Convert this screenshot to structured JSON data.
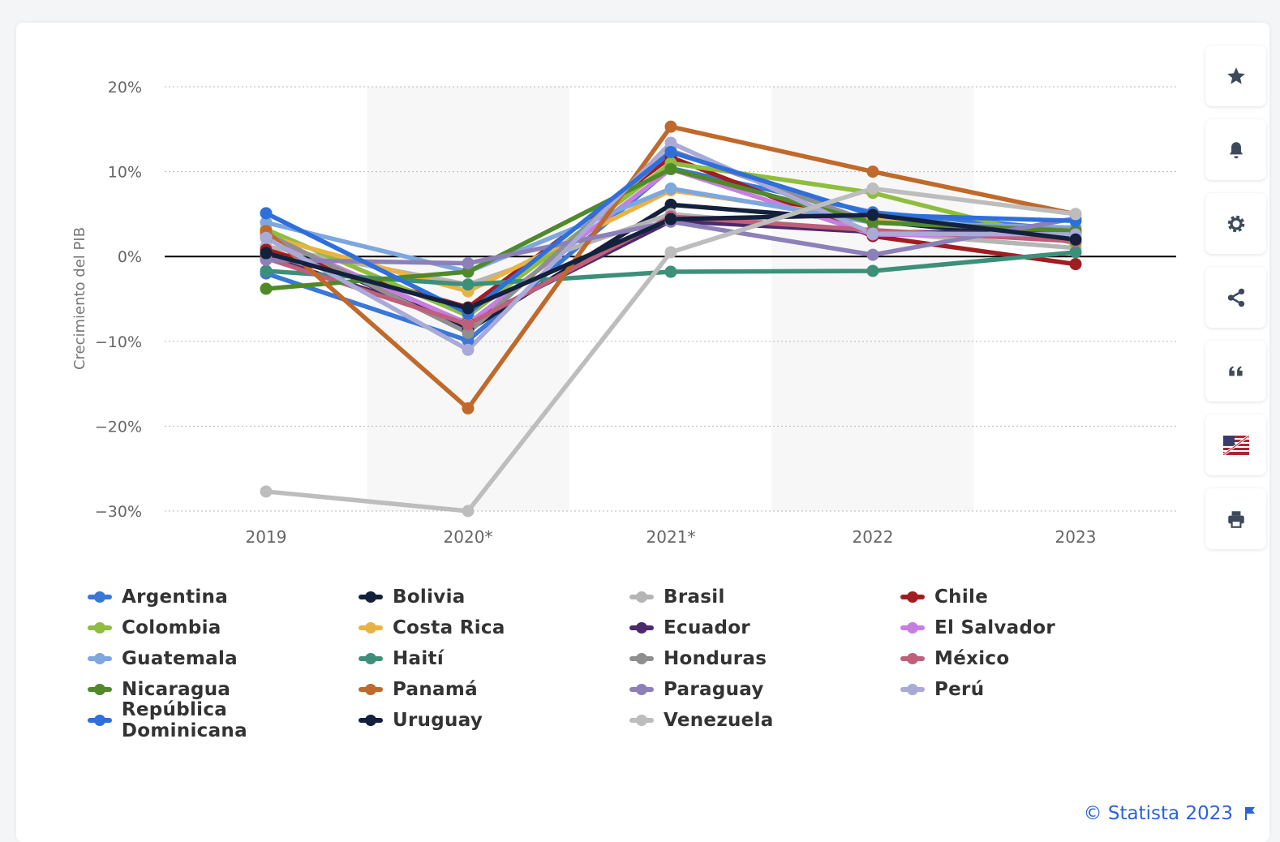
{
  "credits": "© Statista 2023",
  "toolbar": [
    {
      "icon": "star-icon",
      "name": "favorite"
    },
    {
      "icon": "bell-icon",
      "name": "notification"
    },
    {
      "icon": "gear-icon",
      "name": "settings"
    },
    {
      "icon": "share-icon",
      "name": "share"
    },
    {
      "icon": "quote-icon",
      "name": "cite"
    },
    {
      "icon": "flag-uk-us-icon",
      "name": "language"
    },
    {
      "icon": "printer-icon",
      "name": "print"
    }
  ],
  "chart_data": {
    "type": "line",
    "title": "",
    "xlabel": "",
    "ylabel": "Crecimiento del PIB",
    "categories": [
      "2019",
      "2020*",
      "2021*",
      "2022",
      "2023"
    ],
    "ylim": [
      -30,
      20
    ],
    "yticks": [
      -30,
      -20,
      -10,
      0,
      10,
      20
    ],
    "ytick_labels": [
      "−30%",
      "−20%",
      "−10%",
      "0%",
      "10%",
      "20%"
    ],
    "grid": true,
    "legend_position": "bottom",
    "series": [
      {
        "name": "Argentina",
        "color": "#3a78d8",
        "values": [
          -2.0,
          -9.9,
          10.4,
          5.2,
          3.1
        ]
      },
      {
        "name": "Bolivia",
        "color": "#14213d",
        "values": [
          2.2,
          -8.7,
          6.1,
          4.2,
          1.8
        ]
      },
      {
        "name": "Brasil",
        "color": "#b5b5b5",
        "values": [
          1.2,
          -3.3,
          5.0,
          2.9,
          1.0
        ]
      },
      {
        "name": "Chile",
        "color": "#a11d21",
        "values": [
          0.8,
          -6.0,
          11.7,
          2.4,
          -0.9
        ]
      },
      {
        "name": "Colombia",
        "color": "#8fbd3e",
        "values": [
          3.2,
          -7.0,
          11.0,
          7.5,
          1.5
        ]
      },
      {
        "name": "Costa Rica",
        "color": "#e9b343",
        "values": [
          2.4,
          -4.1,
          7.8,
          4.3,
          2.9
        ]
      },
      {
        "name": "Ecuador",
        "color": "#4b2a6b",
        "values": [
          0.0,
          -7.8,
          4.2,
          2.9,
          2.7
        ]
      },
      {
        "name": "El Salvador",
        "color": "#c77ee0",
        "values": [
          2.4,
          -7.9,
          10.3,
          2.6,
          2.4
        ]
      },
      {
        "name": "Guatemala",
        "color": "#7ea6e0",
        "values": [
          4.0,
          -1.8,
          8.0,
          4.0,
          3.4
        ]
      },
      {
        "name": "Haití",
        "color": "#3c9079",
        "values": [
          -1.7,
          -3.3,
          -1.8,
          -1.7,
          0.5
        ]
      },
      {
        "name": "Honduras",
        "color": "#8f8f8f",
        "values": [
          2.7,
          -9.0,
          12.5,
          4.0,
          3.1
        ]
      },
      {
        "name": "México",
        "color": "#c05f7a",
        "values": [
          -0.2,
          -8.0,
          4.7,
          3.1,
          1.8
        ]
      },
      {
        "name": "Nicaragua",
        "color": "#4f8a2a",
        "values": [
          -3.8,
          -1.8,
          10.3,
          4.0,
          3.0
        ]
      },
      {
        "name": "Panamá",
        "color": "#c0692b",
        "values": [
          3.0,
          -17.9,
          15.3,
          10.0,
          5.0
        ]
      },
      {
        "name": "Paraguay",
        "color": "#8d80b8",
        "values": [
          -0.4,
          -0.8,
          4.1,
          0.2,
          4.5
        ]
      },
      {
        "name": "Perú",
        "color": "#a9aad8",
        "values": [
          2.2,
          -11.0,
          13.4,
          2.7,
          2.6
        ]
      },
      {
        "name": "República Dominicana",
        "color": "#2f6fdc",
        "values": [
          5.1,
          -6.7,
          12.3,
          4.9,
          4.2
        ]
      },
      {
        "name": "Uruguay",
        "color": "#14213d",
        "values": [
          0.4,
          -6.1,
          4.4,
          4.9,
          2.0
        ]
      },
      {
        "name": "Venezuela",
        "color": "#bdbdbd",
        "values": [
          -27.7,
          -30.0,
          0.5,
          8.0,
          5.0
        ]
      }
    ]
  }
}
